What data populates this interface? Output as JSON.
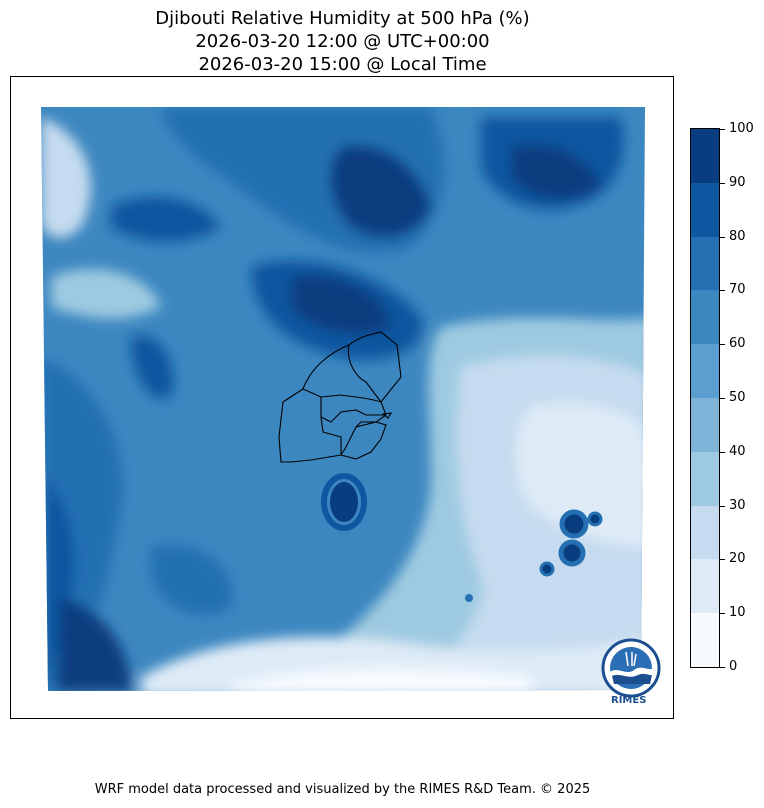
{
  "title": {
    "line1": "Djibouti Relative Humidity at 500 hPa (%)",
    "line2": "2026-03-20 12:00 @ UTC+00:00",
    "line3": "2026-03-20 15:00 @ Local Time"
  },
  "colorbar": {
    "ticks": [
      "0",
      "10",
      "20",
      "30",
      "40",
      "50",
      "60",
      "70",
      "80",
      "90",
      "100"
    ],
    "colors": [
      "#f7fbff",
      "#deebf7",
      "#c6dbef",
      "#9ecae1",
      "#7fb4d8",
      "#5a9fcf",
      "#3d87c0",
      "#2470b2",
      "#0f57a0",
      "#083d7f"
    ]
  },
  "logo": {
    "text": "RIMES"
  },
  "footer": "WRF model data processed and visualized by the RIMES R&D Team. © 2025"
}
